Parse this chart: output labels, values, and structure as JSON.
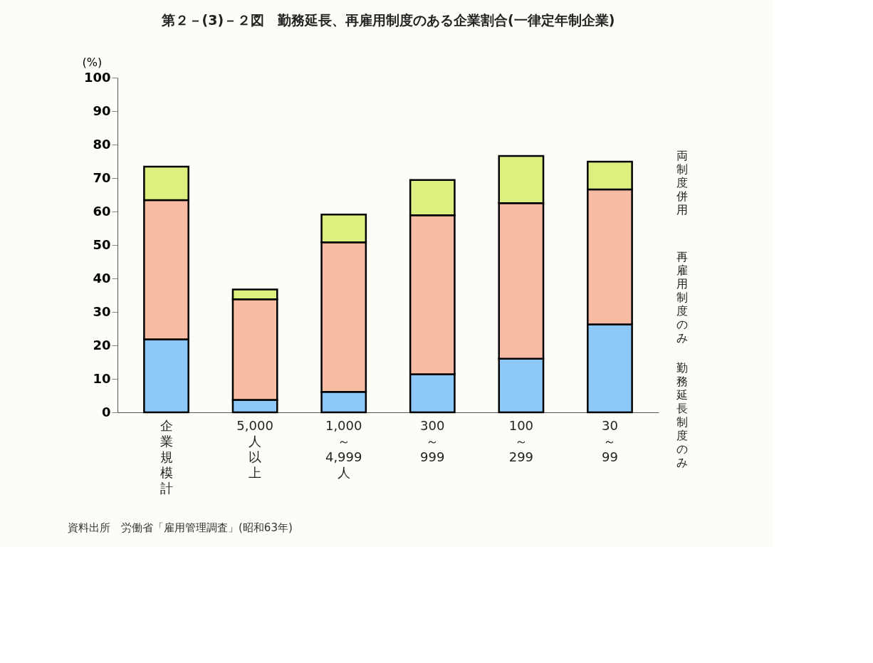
{
  "chart_data": {
    "type": "bar",
    "stacked": true,
    "title": "第２－(3)－２図　勤務延長、再雇用制度のある企業割合(一律定年制企業)",
    "ylabel": "(%)",
    "categories": [
      "企業規模計",
      "5,000人以上",
      "1,000～4,999人",
      "300～999",
      "100～299",
      "30～99"
    ],
    "series": [
      {
        "name": "勤務延長制度のみ",
        "color": "#8ec8f8",
        "values": [
          21.8,
          3.7,
          6.1,
          11.4,
          16.0,
          26.3
        ]
      },
      {
        "name": "再雇用制度のみ",
        "color": "#f8bca4",
        "values": [
          41.6,
          30.1,
          44.7,
          47.5,
          46.5,
          40.3
        ]
      },
      {
        "name": "両制度併用",
        "color": "#dcf080",
        "values": [
          10.0,
          2.9,
          8.3,
          10.5,
          14.1,
          8.3
        ]
      }
    ],
    "ylim": [
      0,
      100
    ],
    "yticks": [
      0,
      10,
      20,
      30,
      40,
      50,
      60,
      70,
      80,
      90,
      100
    ],
    "grid": false,
    "annotations": [
      "資料出所　労働省「雇用管理調査」(昭和63年)"
    ]
  }
}
